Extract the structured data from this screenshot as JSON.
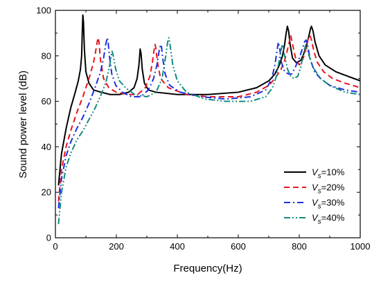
{
  "chart_data": {
    "type": "line",
    "xlabel": "Frequency(Hz)",
    "ylabel": "Sound power level (dB)",
    "xlim": [
      0,
      1000
    ],
    "ylim": [
      0,
      100
    ],
    "x_ticks": [
      0,
      200,
      400,
      600,
      800,
      1000
    ],
    "y_ticks": [
      0,
      20,
      40,
      60,
      80,
      100
    ],
    "grid": false,
    "legend_position": "right",
    "series": [
      {
        "name": "Vs=10%",
        "legend_symbol": "V",
        "legend_subscript": "s",
        "legend_suffix": "=10%",
        "color": "#000000",
        "dash": "solid",
        "x": [
          10,
          20,
          35,
          50,
          65,
          75,
          82,
          86,
          88,
          90,
          92,
          95,
          100,
          110,
          125,
          150,
          180,
          210,
          240,
          258,
          268,
          274,
          278,
          281,
          285,
          292,
          305,
          330,
          400,
          500,
          600,
          660,
          700,
          720,
          735,
          745,
          752,
          757,
          761,
          765,
          770,
          778,
          790,
          805,
          815,
          825,
          832,
          837,
          840,
          845,
          852,
          865,
          885,
          920,
          960,
          1000
        ],
        "y": [
          23,
          37,
          48,
          57,
          64,
          69,
          74,
          80,
          90,
          98,
          95,
          83,
          73,
          68,
          65,
          64,
          63,
          63,
          64,
          66,
          70,
          76,
          83,
          81,
          74,
          68,
          65,
          64,
          63,
          63,
          64,
          66,
          69,
          72,
          76,
          80,
          85,
          90,
          93,
          91,
          85,
          79,
          77,
          78,
          81,
          85,
          89,
          92,
          93,
          91,
          86,
          80,
          76,
          73,
          71,
          69
        ]
      },
      {
        "name": "Vs=20%",
        "legend_symbol": "V",
        "legend_subscript": "s",
        "legend_suffix": "=20%",
        "color": "#e8141b",
        "dash": "dashed",
        "x": [
          10,
          20,
          35,
          50,
          70,
          90,
          110,
          125,
          132,
          137,
          140,
          143,
          148,
          158,
          175,
          200,
          240,
          270,
          295,
          310,
          318,
          323,
          327,
          330,
          335,
          345,
          370,
          430,
          500,
          600,
          660,
          700,
          720,
          740,
          752,
          760,
          767,
          772,
          778,
          788,
          800,
          810,
          818,
          825,
          830,
          835,
          840,
          848,
          860,
          880,
          910,
          950,
          1000
        ],
        "y": [
          16,
          30,
          40,
          47,
          55,
          62,
          70,
          77,
          82,
          86,
          88,
          86,
          78,
          70,
          66,
          64,
          63,
          63,
          66,
          71,
          77,
          82,
          85,
          83,
          77,
          70,
          66,
          63,
          62,
          62,
          64,
          67,
          70,
          74,
          78,
          82,
          86,
          89,
          85,
          79,
          76,
          78,
          81,
          85,
          88,
          89,
          87,
          82,
          77,
          73,
          70,
          68,
          66
        ]
      },
      {
        "name": "Vs=30%",
        "legend_symbol": "V",
        "legend_subscript": "s",
        "legend_suffix": "=30%",
        "color": "#1a2ee0",
        "dash": "dashdot",
        "x": [
          10,
          20,
          35,
          50,
          70,
          90,
          110,
          130,
          148,
          158,
          165,
          170,
          173,
          177,
          185,
          198,
          220,
          250,
          280,
          305,
          322,
          333,
          340,
          345,
          348,
          352,
          360,
          375,
          410,
          480,
          560,
          640,
          690,
          710,
          720,
          727,
          731,
          735,
          742,
          752,
          765,
          775,
          787,
          800,
          810,
          817,
          822,
          827,
          835,
          850,
          870,
          900,
          950,
          1000
        ],
        "y": [
          13,
          26,
          36,
          42,
          48,
          53,
          59,
          66,
          73,
          79,
          85,
          88,
          86,
          80,
          72,
          67,
          64,
          62,
          62,
          65,
          70,
          76,
          82,
          85,
          84,
          79,
          72,
          67,
          64,
          62,
          61,
          62,
          65,
          70,
          76,
          82,
          86,
          84,
          77,
          73,
          72,
          72,
          75,
          79,
          83,
          86,
          87,
          85,
          79,
          73,
          70,
          67,
          65,
          64
        ]
      },
      {
        "name": "Vs=40%",
        "legend_symbol": "V",
        "legend_subscript": "s",
        "legend_suffix": "=40%",
        "color": "#128a7e",
        "dash": "dashdotdot",
        "x": [
          10,
          20,
          35,
          50,
          70,
          90,
          110,
          130,
          150,
          165,
          177,
          183,
          186,
          190,
          198,
          210,
          230,
          260,
          300,
          330,
          350,
          362,
          368,
          372,
          377,
          385,
          400,
          430,
          490,
          560,
          640,
          690,
          712,
          725,
          733,
          739,
          745,
          752,
          762,
          772,
          782,
          795,
          805,
          812,
          817,
          822,
          830,
          845,
          870,
          900,
          950,
          1000
        ],
        "y": [
          6,
          20,
          31,
          37,
          43,
          47,
          52,
          57,
          63,
          68,
          75,
          80,
          82,
          80,
          74,
          69,
          66,
          63,
          62,
          64,
          70,
          80,
          86,
          88,
          84,
          76,
          69,
          64,
          61,
          60,
          60,
          62,
          66,
          71,
          77,
          82,
          85,
          80,
          74,
          71,
          70,
          71,
          75,
          80,
          83,
          85,
          81,
          75,
          70,
          67,
          64,
          63
        ]
      }
    ]
  }
}
